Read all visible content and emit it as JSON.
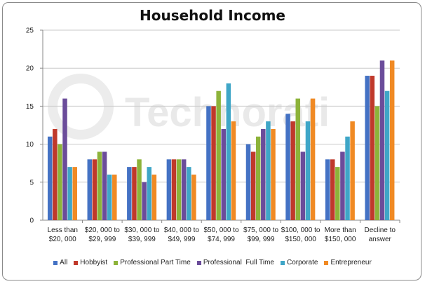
{
  "chart_data": {
    "type": "bar",
    "title": "Household Income",
    "xlabel": "",
    "ylabel": "",
    "ylim": [
      0,
      25
    ],
    "yticks": [
      0,
      5,
      10,
      15,
      20,
      25
    ],
    "grid": true,
    "legend_position": "bottom",
    "watermark": "Technorati",
    "categories": [
      [
        "Less than",
        "$20, 000"
      ],
      [
        "$20, 000 to",
        "$29, 999"
      ],
      [
        "$30, 000 to",
        "$39, 999"
      ],
      [
        "$40, 000 to",
        "$49, 999"
      ],
      [
        "$50, 000 to",
        "$74, 999"
      ],
      [
        "$75, 000 to",
        "$99, 999"
      ],
      [
        "$100, 000 to",
        "$150, 000"
      ],
      [
        "More than",
        "$150, 000"
      ],
      [
        "Decline to",
        "answer"
      ]
    ],
    "series": [
      {
        "name": "All",
        "color": "#4472C4",
        "values": [
          11,
          8,
          7,
          8,
          15,
          10,
          14,
          8,
          19
        ]
      },
      {
        "name": "Hobbyist",
        "color": "#C0392B",
        "values": [
          12,
          8,
          7,
          8,
          15,
          9,
          13,
          8,
          19
        ]
      },
      {
        "name": "Professional Part Time",
        "color": "#8DB33A",
        "values": [
          10,
          9,
          8,
          8,
          17,
          11,
          16,
          7,
          15
        ]
      },
      {
        "name": "Professional  Full Time",
        "color": "#6B4C9A",
        "values": [
          16,
          9,
          5,
          8,
          12,
          12,
          9,
          9,
          21
        ]
      },
      {
        "name": "Corporate",
        "color": "#3FA6C7",
        "values": [
          7,
          6,
          7,
          7,
          18,
          13,
          13,
          11,
          17
        ]
      },
      {
        "name": "Entrepreneur",
        "color": "#F08A24",
        "values": [
          7,
          6,
          6,
          6,
          13,
          12,
          16,
          13,
          21
        ]
      }
    ]
  }
}
